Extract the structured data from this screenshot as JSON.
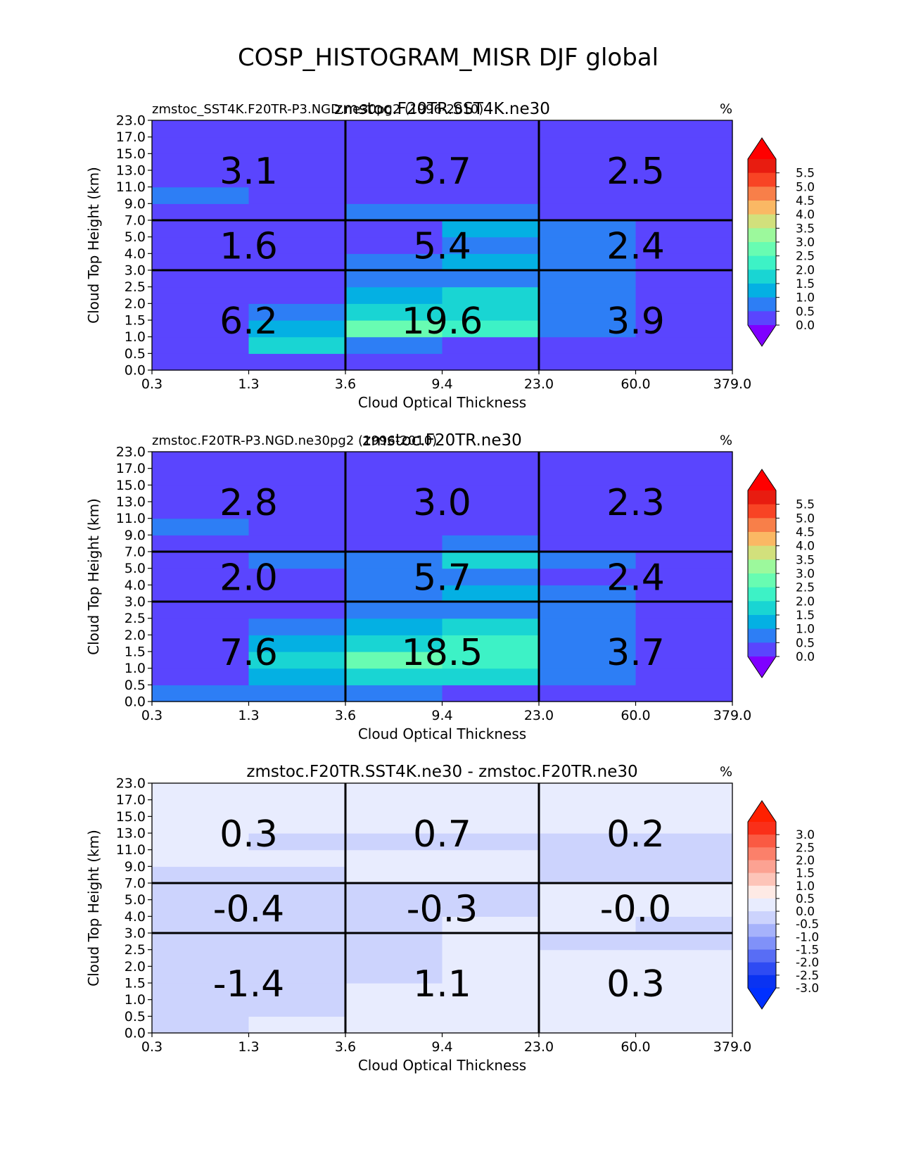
{
  "title": "COSP_HISTOGRAM_MISR DJF global",
  "chart_data": [
    {
      "type": "heatmap",
      "title": "zmstoc.F20TR.SST4K.ne30",
      "left_title": "zmstoc_SST4K.F20TR-P3.NGD.ne30pg2 (1996-2010)",
      "units": "%",
      "xlabel": "Cloud Optical Thickness",
      "ylabel": "Cloud Top Height (km)",
      "xticks": [
        "0.3",
        "1.3",
        "3.6",
        "9.4",
        "23.0",
        "60.0",
        "379.0"
      ],
      "yticks": [
        "0.0",
        "0.5",
        "1.0",
        "1.5",
        "2.0",
        "2.5",
        "3.0",
        "4.0",
        "5.0",
        "7.0",
        "9.0",
        "11.0",
        "13.0",
        "15.0",
        "17.0",
        "23.0"
      ],
      "colorbar": {
        "labels": [
          "5.5",
          "5.0",
          "4.5",
          "4.0",
          "3.5",
          "3.0",
          "2.5",
          "2.0",
          "1.5",
          "1.0",
          "0.5",
          "0.0"
        ],
        "colors": [
          "#e81c10",
          "#f84424",
          "#f87f49",
          "#fab864",
          "#d2e07c",
          "#9cf99c",
          "#68fcb2",
          "#3df2c6",
          "#19d5d3",
          "#04b0e3",
          "#2d7ef5",
          "#5a45fe"
        ],
        "over": "#ff0000",
        "under": "#7f00ff"
      },
      "grid": [
        [
          0.1,
          0.4,
          0.4,
          0.1,
          0.1,
          0.1
        ],
        [
          0.1,
          1.6,
          0.8,
          0.4,
          0.4,
          0.1
        ],
        [
          0.1,
          1.4,
          2.6,
          2.0,
          0.6,
          0.1
        ],
        [
          0.1,
          0.6,
          1.9,
          1.6,
          0.6,
          0.1
        ],
        [
          0.1,
          0.1,
          1.3,
          1.8,
          0.6,
          0.1
        ],
        [
          0.1,
          0.1,
          0.6,
          0.8,
          0.6,
          0.1
        ],
        [
          0.1,
          0.1,
          0.9,
          1.4,
          0.6,
          0.1
        ],
        [
          0.1,
          0.1,
          0.1,
          0.9,
          0.6,
          0.1
        ],
        [
          0.1,
          0.1,
          0.1,
          1.2,
          0.5,
          0.1
        ],
        [
          0.1,
          0.1,
          0.6,
          0.6,
          0.1,
          0.1
        ],
        [
          0.6,
          0.1,
          0.1,
          0.1,
          0.1,
          0.1
        ],
        [
          0.1,
          0.1,
          0.1,
          0.1,
          0.1,
          0.1
        ],
        [
          0.1,
          0.1,
          0.1,
          0.1,
          0.1,
          0.1
        ],
        [
          0.1,
          0.1,
          0.1,
          0.1,
          0.1,
          0.1
        ],
        [
          0.1,
          0.1,
          0.1,
          0.1,
          0.1,
          0.1
        ]
      ],
      "region_values": [
        [
          "6.2",
          "19.6",
          "3.9"
        ],
        [
          "1.6",
          "5.4",
          "2.4"
        ],
        [
          "3.1",
          "3.7",
          "2.5"
        ]
      ]
    },
    {
      "type": "heatmap",
      "title": "zmstoc.F20TR.ne30",
      "left_title": "zmstoc.F20TR-P3.NGD.ne30pg2 (1996-2010)",
      "units": "%",
      "xlabel": "Cloud Optical Thickness",
      "ylabel": "Cloud Top Height (km)",
      "xticks": [
        "0.3",
        "1.3",
        "3.6",
        "9.4",
        "23.0",
        "60.0",
        "379.0"
      ],
      "yticks": [
        "0.0",
        "0.5",
        "1.0",
        "1.5",
        "2.0",
        "2.5",
        "3.0",
        "4.0",
        "5.0",
        "7.0",
        "9.0",
        "11.0",
        "13.0",
        "15.0",
        "17.0",
        "23.0"
      ],
      "colorbar": {
        "labels": [
          "5.5",
          "5.0",
          "4.5",
          "4.0",
          "3.5",
          "3.0",
          "2.5",
          "2.0",
          "1.5",
          "1.0",
          "0.5",
          "0.0"
        ],
        "colors": [
          "#e81c10",
          "#f84424",
          "#f87f49",
          "#fab864",
          "#d2e07c",
          "#9cf99c",
          "#68fcb2",
          "#3df2c6",
          "#19d5d3",
          "#04b0e3",
          "#2d7ef5",
          "#5a45fe"
        ],
        "over": "#ff0000",
        "under": "#7f00ff"
      },
      "grid": [
        [
          0.6,
          0.6,
          0.6,
          0.1,
          0.1,
          0.1
        ],
        [
          0.1,
          1.4,
          1.9,
          1.8,
          0.6,
          0.1
        ],
        [
          0.1,
          1.9,
          2.8,
          2.3,
          0.6,
          0.1
        ],
        [
          0.1,
          1.4,
          1.9,
          2.3,
          0.6,
          0.1
        ],
        [
          0.1,
          0.6,
          1.4,
          1.9,
          0.6,
          0.1
        ],
        [
          0.1,
          0.1,
          0.6,
          0.6,
          0.6,
          0.1
        ],
        [
          0.1,
          0.1,
          0.6,
          1.4,
          0.6,
          0.1
        ],
        [
          0.1,
          0.1,
          0.6,
          0.6,
          0.1,
          0.1
        ],
        [
          0.1,
          0.6,
          0.6,
          1.9,
          0.6,
          0.1
        ],
        [
          0.1,
          0.1,
          0.1,
          0.6,
          0.1,
          0.1
        ],
        [
          0.6,
          0.1,
          0.1,
          0.1,
          0.1,
          0.1
        ],
        [
          0.1,
          0.1,
          0.1,
          0.1,
          0.1,
          0.1
        ],
        [
          0.1,
          0.1,
          0.1,
          0.1,
          0.1,
          0.1
        ],
        [
          0.1,
          0.1,
          0.1,
          0.1,
          0.1,
          0.1
        ],
        [
          0.1,
          0.1,
          0.1,
          0.1,
          0.1,
          0.1
        ]
      ],
      "region_values": [
        [
          "7.6",
          "18.5",
          "3.7"
        ],
        [
          "2.0",
          "5.7",
          "2.4"
        ],
        [
          "2.8",
          "3.0",
          "2.3"
        ]
      ]
    },
    {
      "type": "heatmap",
      "title": "zmstoc.F20TR.SST4K.ne30 - zmstoc.F20TR.ne30",
      "left_title": "",
      "units": "%",
      "xlabel": "Cloud Optical Thickness",
      "ylabel": "Cloud Top Height (km)",
      "xticks": [
        "0.3",
        "1.3",
        "3.6",
        "9.4",
        "23.0",
        "60.0",
        "379.0"
      ],
      "yticks": [
        "0.0",
        "0.5",
        "1.0",
        "1.5",
        "2.0",
        "2.5",
        "3.0",
        "4.0",
        "5.0",
        "7.0",
        "9.0",
        "11.0",
        "13.0",
        "15.0",
        "17.0",
        "23.0"
      ],
      "colorbar": {
        "labels": [
          "3.0",
          "2.5",
          "2.0",
          "1.5",
          "1.0",
          "0.5",
          "0.0",
          "-0.5",
          "-1.0",
          "-1.5",
          "-2.0",
          "-2.5",
          "-3.0"
        ],
        "colors": [
          "#fa2f19",
          "#fa5a43",
          "#fb806a",
          "#fca292",
          "#fdc4b8",
          "#feeae5",
          "#e8ecfe",
          "#ccd3fd",
          "#a6b2fb",
          "#8091f9",
          "#586df5",
          "#2e4bf3",
          "#0a33f2"
        ],
        "over": "#ff2000",
        "under": "#0030ff"
      },
      "grid": [
        [
          -0.1,
          0.1,
          0.1,
          0.1,
          0.1,
          0.1
        ],
        [
          -0.1,
          -0.1,
          0.1,
          0.1,
          0.1,
          0.1
        ],
        [
          -0.1,
          -0.1,
          0.1,
          0.1,
          0.1,
          0.1
        ],
        [
          -0.1,
          -0.1,
          -0.1,
          0.1,
          0.1,
          0.1
        ],
        [
          -0.1,
          -0.1,
          -0.1,
          0.1,
          0.1,
          0.1
        ],
        [
          -0.1,
          -0.1,
          -0.1,
          0.1,
          -0.1,
          -0.1
        ],
        [
          -0.1,
          -0.1,
          -0.1,
          0.1,
          0.1,
          -0.1
        ],
        [
          -0.1,
          -0.1,
          -0.1,
          -0.1,
          0.1,
          0.1
        ],
        [
          -0.1,
          -0.1,
          -0.1,
          -0.1,
          0.1,
          0.1
        ],
        [
          -0.1,
          -0.1,
          0.1,
          0.1,
          -0.1,
          -0.1
        ],
        [
          0.1,
          0.1,
          0.1,
          0.1,
          -0.1,
          -0.1
        ],
        [
          0.1,
          -0.1,
          -0.1,
          -0.1,
          -0.1,
          -0.1
        ],
        [
          0.1,
          0.1,
          0.1,
          0.1,
          0.1,
          0.1
        ],
        [
          0.1,
          0.1,
          0.1,
          0.1,
          0.1,
          0.1
        ],
        [
          0.1,
          0.1,
          0.1,
          0.1,
          0.1,
          0.1
        ]
      ],
      "region_values": [
        [
          "-1.4",
          "1.1",
          "0.3"
        ],
        [
          "-0.4",
          "-0.3",
          "-0.0"
        ],
        [
          "0.3",
          "0.7",
          "0.2"
        ]
      ]
    }
  ]
}
